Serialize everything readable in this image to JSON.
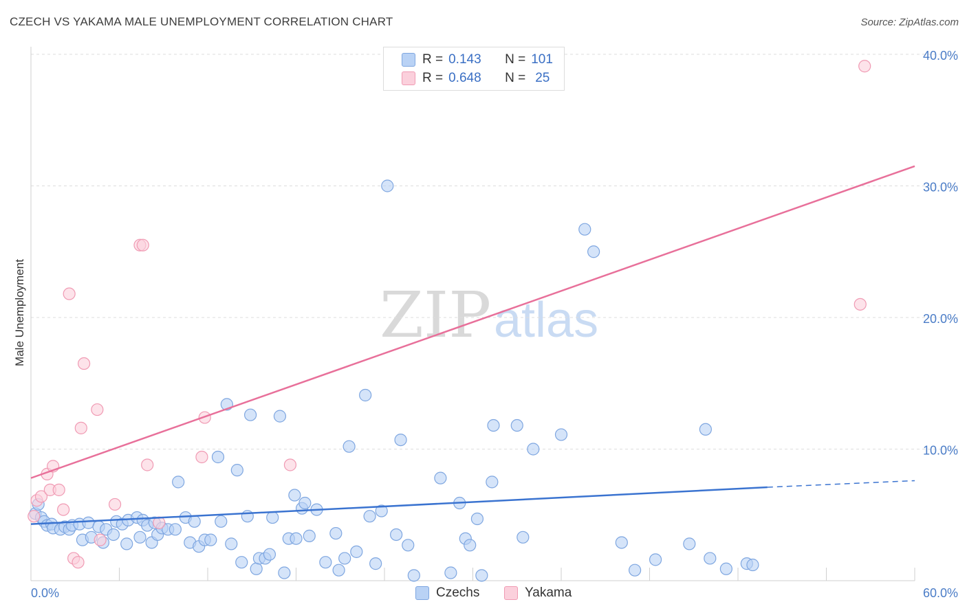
{
  "title": "CZECH VS YAKAMA MALE UNEMPLOYMENT CORRELATION CHART",
  "source": "Source: ZipAtlas.com",
  "watermark": {
    "zip": "ZIP",
    "atlas": "atlas"
  },
  "colors": {
    "blue": "#3a73d0",
    "pink": "#e8709a",
    "blue_fill": "#b9d2f5",
    "pink_fill": "#fbd0dc",
    "tick": "#4a7cc7"
  },
  "legend": {
    "rows": [
      {
        "r_label": "R =",
        "r_value": "0.143",
        "n_label": "N =",
        "n_value": "101"
      },
      {
        "r_label": "R =",
        "r_value": "0.648",
        "n_label": "N =",
        "n_value": "25"
      }
    ]
  },
  "chart_data": {
    "type": "scatter",
    "title": "CZECH VS YAKAMA MALE UNEMPLOYMENT CORRELATION CHART",
    "xlabel": "",
    "ylabel": "Male Unemployment",
    "xlim": [
      0,
      60
    ],
    "ylim": [
      0,
      40
    ],
    "x_tick_labels": [
      "0.0%",
      "60.0%"
    ],
    "y_ticks": [
      10,
      20,
      30,
      40
    ],
    "y_tick_labels": [
      "10.0%",
      "20.0%",
      "30.0%",
      "40.0%"
    ],
    "legend_position": "bottom-center",
    "series": [
      {
        "name": "Czechs",
        "r": 0.143,
        "n": 101,
        "trend": {
          "x0": 0,
          "y0": 4.3,
          "x1": 50,
          "y1": 7.1,
          "dashed_to": 60,
          "dashed_y": 7.6
        },
        "points": [
          [
            0.3,
            5.1
          ],
          [
            0.5,
            5.8
          ],
          [
            0.7,
            4.8
          ],
          [
            0.9,
            4.5
          ],
          [
            1.1,
            4.2
          ],
          [
            1.4,
            4.3
          ],
          [
            1.5,
            4.0
          ],
          [
            2.0,
            3.9
          ],
          [
            2.3,
            4.1
          ],
          [
            2.6,
            3.9
          ],
          [
            2.8,
            4.2
          ],
          [
            3.3,
            4.3
          ],
          [
            3.5,
            3.1
          ],
          [
            3.9,
            4.4
          ],
          [
            4.1,
            3.3
          ],
          [
            4.6,
            4.1
          ],
          [
            4.9,
            2.9
          ],
          [
            5.1,
            3.9
          ],
          [
            5.6,
            3.5
          ],
          [
            5.8,
            4.5
          ],
          [
            6.2,
            4.3
          ],
          [
            6.5,
            2.8
          ],
          [
            6.6,
            4.6
          ],
          [
            7.2,
            4.8
          ],
          [
            7.4,
            3.3
          ],
          [
            7.6,
            4.6
          ],
          [
            7.9,
            4.2
          ],
          [
            8.2,
            2.9
          ],
          [
            8.4,
            4.4
          ],
          [
            8.6,
            3.5
          ],
          [
            8.9,
            4.0
          ],
          [
            9.3,
            3.9
          ],
          [
            9.8,
            3.9
          ],
          [
            10.0,
            7.5
          ],
          [
            10.5,
            4.8
          ],
          [
            10.8,
            2.9
          ],
          [
            11.1,
            4.5
          ],
          [
            11.4,
            2.6
          ],
          [
            11.8,
            3.1
          ],
          [
            12.2,
            3.1
          ],
          [
            12.7,
            9.4
          ],
          [
            12.9,
            4.5
          ],
          [
            13.3,
            13.4
          ],
          [
            13.6,
            2.8
          ],
          [
            14.0,
            8.4
          ],
          [
            14.3,
            1.4
          ],
          [
            14.7,
            4.9
          ],
          [
            14.9,
            12.6
          ],
          [
            15.3,
            0.9
          ],
          [
            15.5,
            1.7
          ],
          [
            15.9,
            1.7
          ],
          [
            16.2,
            2.0
          ],
          [
            16.4,
            4.8
          ],
          [
            16.9,
            12.5
          ],
          [
            17.2,
            0.6
          ],
          [
            17.5,
            3.2
          ],
          [
            17.9,
            6.5
          ],
          [
            18.0,
            3.2
          ],
          [
            18.4,
            5.5
          ],
          [
            18.6,
            5.9
          ],
          [
            18.9,
            3.4
          ],
          [
            19.4,
            5.4
          ],
          [
            20.0,
            1.4
          ],
          [
            20.7,
            3.6
          ],
          [
            20.9,
            0.8
          ],
          [
            21.3,
            1.7
          ],
          [
            21.6,
            10.2
          ],
          [
            22.1,
            2.2
          ],
          [
            22.7,
            14.1
          ],
          [
            23.0,
            4.9
          ],
          [
            23.4,
            1.3
          ],
          [
            23.8,
            5.3
          ],
          [
            24.2,
            30.0
          ],
          [
            24.8,
            3.5
          ],
          [
            25.1,
            10.7
          ],
          [
            25.6,
            2.7
          ],
          [
            26.0,
            0.4
          ],
          [
            27.8,
            7.8
          ],
          [
            28.5,
            0.6
          ],
          [
            29.1,
            5.9
          ],
          [
            29.5,
            3.2
          ],
          [
            29.8,
            2.7
          ],
          [
            30.3,
            4.7
          ],
          [
            30.6,
            0.4
          ],
          [
            31.3,
            7.5
          ],
          [
            31.4,
            11.8
          ],
          [
            33.0,
            11.8
          ],
          [
            33.4,
            3.3
          ],
          [
            34.1,
            10.0
          ],
          [
            36.0,
            11.1
          ],
          [
            37.6,
            26.7
          ],
          [
            38.2,
            25.0
          ],
          [
            40.1,
            2.9
          ],
          [
            41.0,
            0.8
          ],
          [
            42.4,
            1.6
          ],
          [
            44.7,
            2.8
          ],
          [
            45.8,
            11.5
          ],
          [
            46.1,
            1.7
          ],
          [
            47.2,
            0.9
          ],
          [
            48.6,
            1.3
          ],
          [
            49.0,
            1.2
          ]
        ]
      },
      {
        "name": "Yakama",
        "r": 0.648,
        "n": 25,
        "trend": {
          "x0": 0,
          "y0": 7.8,
          "x1": 60,
          "y1": 31.5
        },
        "points": [
          [
            0.2,
            4.9
          ],
          [
            0.4,
            6.1
          ],
          [
            0.7,
            6.4
          ],
          [
            1.1,
            8.1
          ],
          [
            1.3,
            6.9
          ],
          [
            1.5,
            8.7
          ],
          [
            1.9,
            6.9
          ],
          [
            2.2,
            5.4
          ],
          [
            2.6,
            21.8
          ],
          [
            2.9,
            1.7
          ],
          [
            3.2,
            1.4
          ],
          [
            3.4,
            11.6
          ],
          [
            3.6,
            16.5
          ],
          [
            4.5,
            13.0
          ],
          [
            4.7,
            3.1
          ],
          [
            5.7,
            5.8
          ],
          [
            7.4,
            25.5
          ],
          [
            7.6,
            25.5
          ],
          [
            7.9,
            8.8
          ],
          [
            8.7,
            4.4
          ],
          [
            11.6,
            9.4
          ],
          [
            11.8,
            12.4
          ],
          [
            17.6,
            8.8
          ],
          [
            56.3,
            21.0
          ],
          [
            56.6,
            39.1
          ]
        ]
      }
    ]
  }
}
